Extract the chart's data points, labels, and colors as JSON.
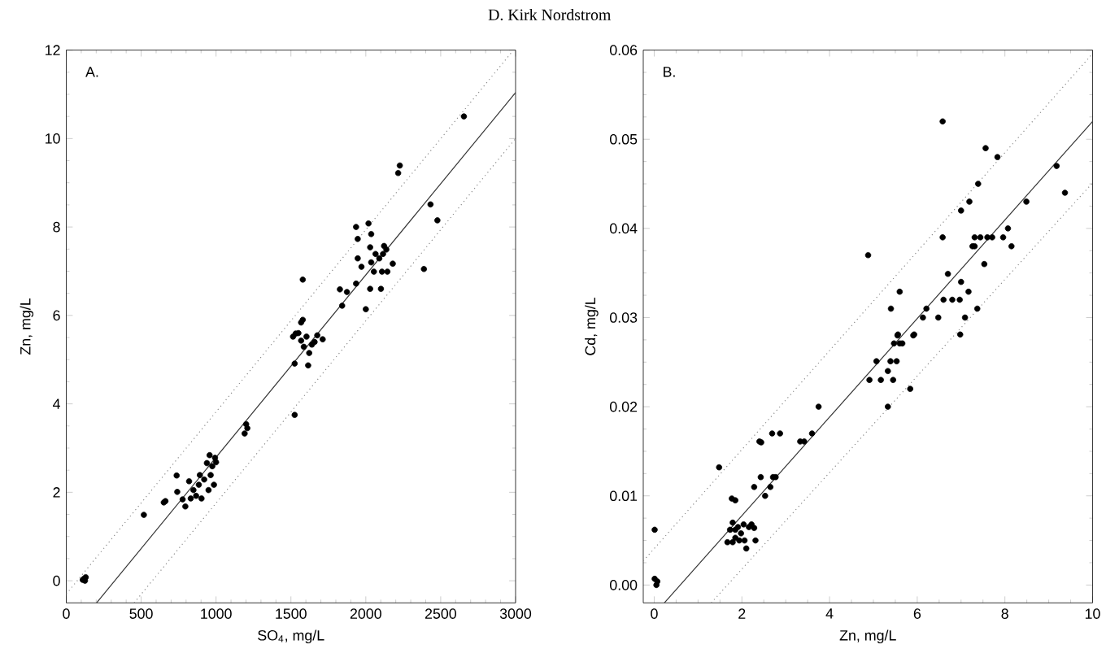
{
  "chart_data": [
    {
      "type": "scatter",
      "xlabel": "SO$_{4}$, mg/L",
      "ylabel": "Zn, mg/L",
      "annotations": [
        "A.",
        "D. Kirk Nordstrom"
      ],
      "xlim": [
        0,
        3000
      ],
      "ylim": [
        -0.5,
        12
      ],
      "xticks": [
        0,
        500,
        1000,
        1500,
        2000,
        2500,
        3000
      ],
      "yticks": [
        0,
        2,
        4,
        6,
        8,
        10,
        12
      ],
      "series": [
        {
          "type": "scatter",
          "marker": "circle",
          "color": "#000000",
          "x": [
            110,
            120,
            130,
            125,
            518,
            651,
            662,
            737,
            741,
            820,
            777,
            795,
            849,
            885,
            903,
            921,
            939,
            957,
            975,
            993,
            986,
            950,
            867,
            831,
            892,
            964,
            1000,
            1191,
            1201,
            1209,
            1525,
            1525,
            1615,
            1514,
            1550,
            1568,
            1604,
            1640,
            1676,
            1712,
            1622,
            1658,
            1586,
            1579,
            1579,
            1568,
            1532,
            1827,
            1842,
            1874,
            1935,
            1935,
            1946,
            1946,
            1971,
            2018,
            2036,
            2029,
            2036,
            2054,
            2000,
            2029,
            2065,
            2090,
            2101,
            2108,
            2115,
            2137,
            2144,
            2180,
            2122,
            2216,
            2227,
            2388,
            2432,
            2478,
            2655
          ],
          "values": [
            0.02,
            0.05,
            0.08,
            0.0,
            1.49,
            1.77,
            1.8,
            2.38,
            2.01,
            2.25,
            1.84,
            1.68,
            2.05,
            2.17,
            1.86,
            2.29,
            2.66,
            2.84,
            2.59,
            2.78,
            2.17,
            2.05,
            1.92,
            1.86,
            2.39,
            2.39,
            2.68,
            3.33,
            3.54,
            3.45,
            3.75,
            4.91,
            4.87,
            5.52,
            5.6,
            5.43,
            5.52,
            5.34,
            5.55,
            5.46,
            5.15,
            5.4,
            5.29,
            6.81,
            5.9,
            5.84,
            5.59,
            6.59,
            6.22,
            6.53,
            6.72,
            8.0,
            7.73,
            7.29,
            7.1,
            8.08,
            7.84,
            7.54,
            7.2,
            6.99,
            6.14,
            6.6,
            7.39,
            7.29,
            6.6,
            6.99,
            7.39,
            7.49,
            6.99,
            7.17,
            7.57,
            9.22,
            9.39,
            7.05,
            8.51,
            8.15,
            10.5
          ]
        },
        {
          "type": "line",
          "line_style": "solid",
          "color": "#333333",
          "x": [
            202,
            3000
          ],
          "values": [
            -0.5,
            11.04
          ]
        },
        {
          "type": "line",
          "line_style": "dotted",
          "color": "#888888",
          "x": [
            0,
            2974
          ],
          "values": [
            -0.3,
            11.95
          ]
        },
        {
          "type": "line",
          "line_style": "dotted",
          "color": "#888888",
          "x": [
            453,
            3000
          ],
          "values": [
            -0.5,
            10.0
          ]
        }
      ]
    },
    {
      "type": "scatter",
      "xlabel": "Zn, mg/L",
      "ylabel": "Cd, mg/L",
      "annotations": [
        "B."
      ],
      "xlim": [
        -0.25,
        10
      ],
      "ylim": [
        -0.002,
        0.06
      ],
      "xticks": [
        0,
        2,
        4,
        6,
        8,
        10
      ],
      "yticks": [
        {
          "value": 0,
          "label": "0.00"
        },
        {
          "value": 0.01,
          "label": "0.01"
        },
        {
          "value": 0.02,
          "label": "0.02"
        },
        {
          "value": 0.03,
          "label": "0.03"
        },
        {
          "value": 0.04,
          "label": "0.04"
        },
        {
          "value": 0.05,
          "label": "0.05"
        },
        {
          "value": 0.06,
          "label": "0.06"
        }
      ],
      "series": [
        {
          "type": "scatter",
          "marker": "circle",
          "color": "#000000",
          "x": [
            0.01,
            0.01,
            0.05,
            0.07,
            1.48,
            1.77,
            1.85,
            1.67,
            1.79,
            1.79,
            1.85,
            1.91,
            1.98,
            2.04,
            2.06,
            2.1,
            2.16,
            2.22,
            2.28,
            2.31,
            1.94,
            1.85,
            1.73,
            2.28,
            2.43,
            2.4,
            2.44,
            2.53,
            2.65,
            2.71,
            2.77,
            2.69,
            2.87,
            3.33,
            3.42,
            3.6,
            3.75,
            4.91,
            5.07,
            5.17,
            5.33,
            5.33,
            5.39,
            5.45,
            5.47,
            5.53,
            5.56,
            5.6,
            5.66,
            5.84,
            5.93,
            6.98,
            4.88,
            5.4,
            5.6,
            5.55,
            5.91,
            6.13,
            6.21,
            6.48,
            6.58,
            6.58,
            6.6,
            6.7,
            6.8,
            6.97,
            7.0,
            7.0,
            7.09,
            7.17,
            7.19,
            7.26,
            7.31,
            7.37,
            7.39,
            7.44,
            7.53,
            7.56,
            7.6,
            7.71,
            7.83,
            7.96,
            8.07,
            8.15,
            8.49,
            9.18,
            9.37,
            7.31
          ],
          "values": [
            0.0062,
            0.0007,
            0.0,
            0.0004,
            0.0132,
            0.0097,
            0.0095,
            0.0048,
            0.0048,
            0.007,
            0.0062,
            0.0065,
            0.0058,
            0.0068,
            0.005,
            0.0041,
            0.0065,
            0.0068,
            0.0064,
            0.005,
            0.005,
            0.0053,
            0.0062,
            0.011,
            0.0121,
            0.0161,
            0.016,
            0.01,
            0.011,
            0.0121,
            0.0121,
            0.017,
            0.017,
            0.0161,
            0.0161,
            0.017,
            0.02,
            0.023,
            0.0251,
            0.023,
            0.02,
            0.024,
            0.0251,
            0.023,
            0.0271,
            0.0251,
            0.0281,
            0.0271,
            0.0271,
            0.022,
            0.0281,
            0.0281,
            0.037,
            0.031,
            0.0329,
            0.028,
            0.028,
            0.03,
            0.031,
            0.03,
            0.052,
            0.039,
            0.032,
            0.0349,
            0.032,
            0.032,
            0.034,
            0.042,
            0.03,
            0.0329,
            0.043,
            0.038,
            0.039,
            0.031,
            0.045,
            0.039,
            0.036,
            0.049,
            0.039,
            0.039,
            0.048,
            0.039,
            0.04,
            0.038,
            0.043,
            0.047,
            0.044,
            0.038
          ]
        },
        {
          "type": "line",
          "line_style": "solid",
          "color": "#333333",
          "x": [
            0.23,
            10
          ],
          "values": [
            -0.002,
            0.052
          ]
        },
        {
          "type": "line",
          "line_style": "dotted",
          "color": "#888888",
          "x": [
            -0.25,
            10
          ],
          "values": [
            0.0027,
            0.0596
          ]
        },
        {
          "type": "line",
          "line_style": "dotted",
          "color": "#888888",
          "x": [
            1.3,
            10
          ],
          "values": [
            -0.002,
            0.0451
          ]
        }
      ]
    }
  ]
}
